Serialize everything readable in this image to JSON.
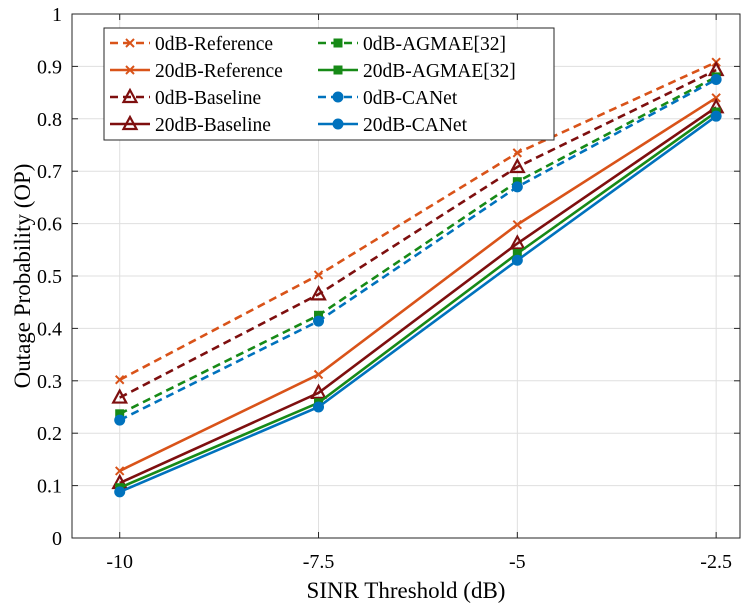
{
  "chart_data": {
    "type": "line",
    "xlabel": "SINR Threshold (dB)",
    "ylabel": "Outage Probability (OP)",
    "x": [
      -10,
      -7.5,
      -5,
      -2.5
    ],
    "x_tick_labels": [
      "-10",
      "-7.5",
      "-5",
      "-2.5"
    ],
    "xlim": [
      -10.6,
      -2.2
    ],
    "ylim": [
      0,
      1
    ],
    "y_ticks": [
      0,
      0.1,
      0.2,
      0.3,
      0.4,
      0.5,
      0.6,
      0.7,
      0.8,
      0.9,
      1
    ],
    "y_tick_labels": [
      "0",
      "0.1",
      "0.2",
      "0.3",
      "0.4",
      "0.5",
      "0.6",
      "0.7",
      "0.8",
      "0.9",
      "1"
    ],
    "grid": true,
    "legend_position": "top-left",
    "series": [
      {
        "name": "0dB-Reference",
        "color": "#D95319",
        "dash": true,
        "marker": "x",
        "values": [
          0.302,
          0.502,
          0.735,
          0.908
        ]
      },
      {
        "name": "20dB-Reference",
        "color": "#D95319",
        "dash": false,
        "marker": "x",
        "values": [
          0.128,
          0.312,
          0.598,
          0.84
        ]
      },
      {
        "name": "0dB-Baseline",
        "color": "#7E0F0F",
        "dash": true,
        "marker": "triangle",
        "values": [
          0.268,
          0.465,
          0.708,
          0.893
        ]
      },
      {
        "name": "20dB-Baseline",
        "color": "#7E0F0F",
        "dash": false,
        "marker": "triangle",
        "values": [
          0.105,
          0.277,
          0.562,
          0.822
        ]
      },
      {
        "name": "0dB-AGMAE[32]",
        "color": "#178A17",
        "dash": true,
        "marker": "square",
        "values": [
          0.237,
          0.425,
          0.68,
          0.88
        ]
      },
      {
        "name": "20dB-AGMAE[32]",
        "color": "#178A17",
        "dash": false,
        "marker": "square",
        "values": [
          0.096,
          0.258,
          0.543,
          0.813
        ]
      },
      {
        "name": "0dB-CANet",
        "color": "#0072BD",
        "dash": true,
        "marker": "circle",
        "values": [
          0.225,
          0.414,
          0.67,
          0.875
        ]
      },
      {
        "name": "20dB-CANet",
        "color": "#0072BD",
        "dash": false,
        "marker": "circle",
        "values": [
          0.088,
          0.25,
          0.53,
          0.805
        ]
      }
    ]
  }
}
